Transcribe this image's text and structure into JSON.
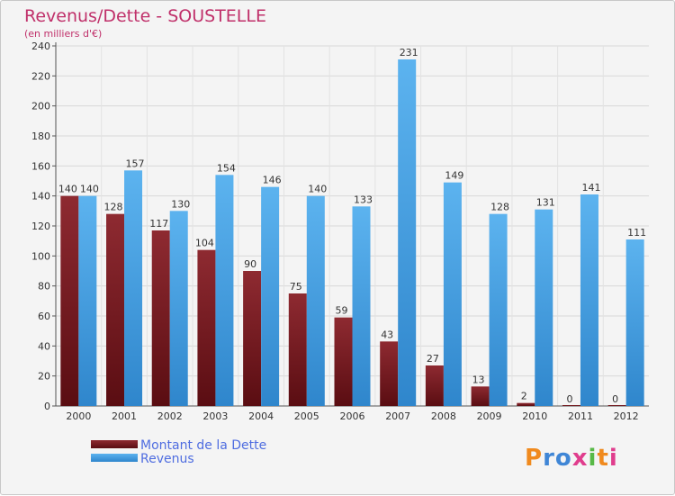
{
  "chart_data": {
    "type": "bar",
    "title": "Revenus/Dette - SOUSTELLE",
    "subtitle": "(en milliers d'€)",
    "categories": [
      "2000",
      "2001",
      "2002",
      "2003",
      "2004",
      "2005",
      "2006",
      "2007",
      "2008",
      "2009",
      "2010",
      "2011",
      "2012"
    ],
    "series": [
      {
        "name": "Montant de la Dette",
        "color": "#7a1c22",
        "values": [
          140,
          128,
          117,
          104,
          90,
          75,
          59,
          43,
          27,
          13,
          2,
          0,
          0
        ]
      },
      {
        "name": "Revenus",
        "color": "#4aa3e4",
        "values": [
          140,
          157,
          130,
          154,
          146,
          140,
          133,
          231,
          149,
          128,
          131,
          141,
          111
        ]
      }
    ],
    "ylim": [
      0,
      240
    ],
    "yticks": [
      0,
      20,
      40,
      60,
      80,
      100,
      120,
      140,
      160,
      180,
      200,
      220,
      240
    ],
    "grid": true,
    "legend": "bottom-left"
  },
  "logo": {
    "text": "Proxiti",
    "colors": [
      "#f08a1e",
      "#3f86d6",
      "#e03d8d",
      "#58b947"
    ]
  }
}
